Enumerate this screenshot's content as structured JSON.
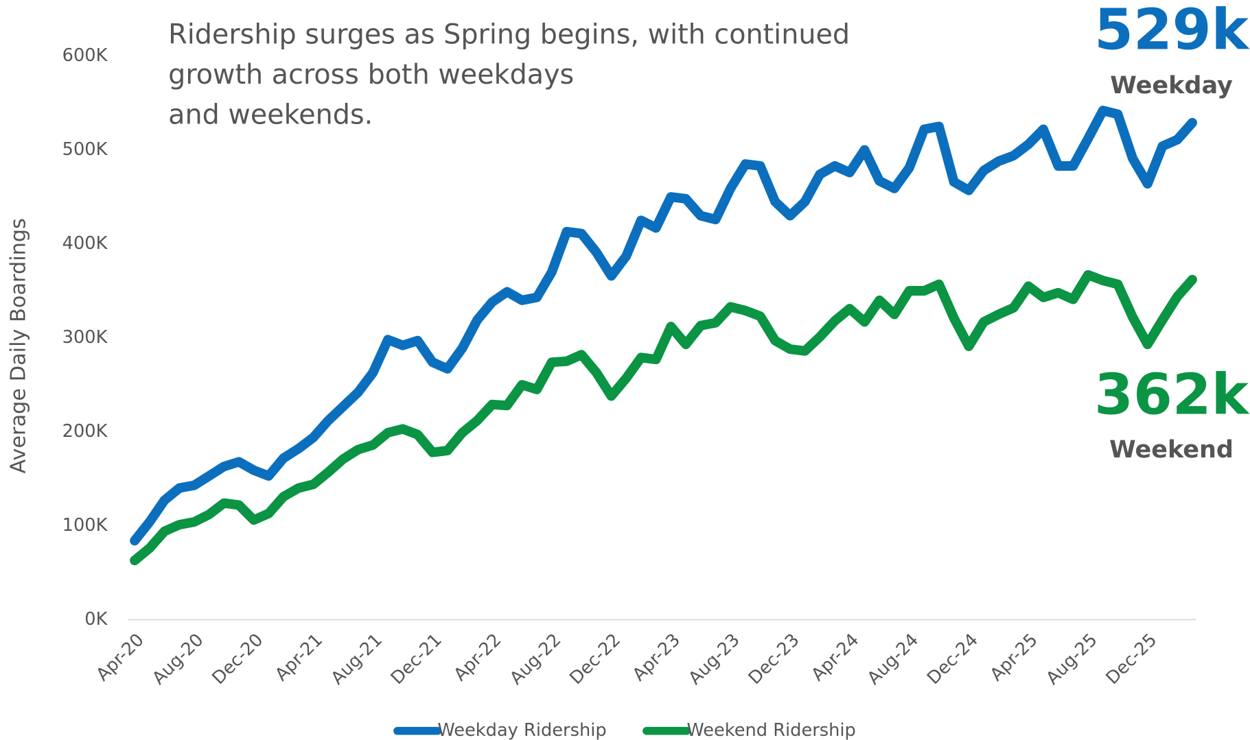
{
  "chart_data": {
    "type": "line",
    "title": "Ridership surges as Spring begins, with continued growth across both weekdays and weekends.",
    "y_label": "Average Daily Boardings",
    "categories": [
      "Apr-20",
      null,
      null,
      null,
      "Aug-20",
      null,
      null,
      null,
      "Dec-20",
      null,
      null,
      null,
      "Apr-21",
      null,
      null,
      null,
      "Aug-21",
      null,
      null,
      null,
      "Dec-21",
      null,
      null,
      null,
      "Apr-22",
      null,
      null,
      null,
      "Aug-22",
      null,
      null,
      null,
      "Dec-22",
      null,
      null,
      null,
      "Apr-23",
      null,
      null,
      null,
      "Aug-23",
      null,
      null,
      null,
      "Dec-23",
      null,
      null,
      null,
      "Apr-24",
      null,
      null,
      null,
      "Aug-24",
      null,
      null,
      null,
      "Dec-24",
      null,
      null,
      null,
      "Apr-25",
      null,
      null,
      null,
      "Aug-25",
      null,
      null,
      null,
      "Dec-25",
      null,
      null,
      null
    ],
    "series": [
      {
        "name": "Weekday Ridership",
        "color": "#0b6fbe",
        "values": [
          84000,
          104000,
          127000,
          140000,
          143000,
          153000,
          163000,
          168000,
          159000,
          153000,
          172000,
          182000,
          194000,
          212000,
          227000,
          242000,
          263000,
          298000,
          292000,
          297000,
          274000,
          267000,
          289000,
          319000,
          338000,
          349000,
          340000,
          343000,
          370000,
          413000,
          411000,
          391000,
          366000,
          387000,
          425000,
          417000,
          450000,
          448000,
          430000,
          426000,
          459000,
          485000,
          483000,
          445000,
          430000,
          445000,
          474000,
          483000,
          476000,
          500000,
          467000,
          459000,
          481000,
          522000,
          525000,
          466000,
          457000,
          478000,
          488000,
          494000,
          506000,
          522000,
          483000,
          483000,
          512000,
          542000,
          538000,
          491000,
          464000,
          504000,
          511000,
          529000
        ]
      },
      {
        "name": "Weekend Ridership",
        "color": "#0a9444",
        "values": [
          63000,
          76000,
          94000,
          101000,
          104000,
          112000,
          124000,
          122000,
          106000,
          113000,
          131000,
          140000,
          144000,
          157000,
          171000,
          181000,
          186000,
          199000,
          203000,
          197000,
          178000,
          180000,
          199000,
          212000,
          229000,
          228000,
          250000,
          245000,
          274000,
          275000,
          282000,
          263000,
          238000,
          257000,
          279000,
          277000,
          312000,
          293000,
          313000,
          316000,
          333000,
          329000,
          323000,
          297000,
          288000,
          286000,
          301000,
          318000,
          331000,
          317000,
          340000,
          325000,
          350000,
          350000,
          357000,
          321000,
          291000,
          317000,
          325000,
          332000,
          355000,
          343000,
          348000,
          341000,
          367000,
          361000,
          357000,
          322000,
          293000,
          319000,
          344000,
          362000
        ]
      }
    ],
    "annotations": [
      "529k",
      "Weekday",
      "362k",
      "Weekend"
    ],
    "ylim": [
      0,
      600000
    ],
    "yticks": [
      {
        "value": 0,
        "label": "0K"
      },
      {
        "value": 100000,
        "label": "100K"
      },
      {
        "value": 200000,
        "label": "200K"
      },
      {
        "value": 300000,
        "label": "300K"
      },
      {
        "value": 400000,
        "label": "400K"
      },
      {
        "value": 500000,
        "label": "500K"
      },
      {
        "value": 600000,
        "label": "600K"
      }
    ],
    "grid": false,
    "legend": "bottom"
  }
}
